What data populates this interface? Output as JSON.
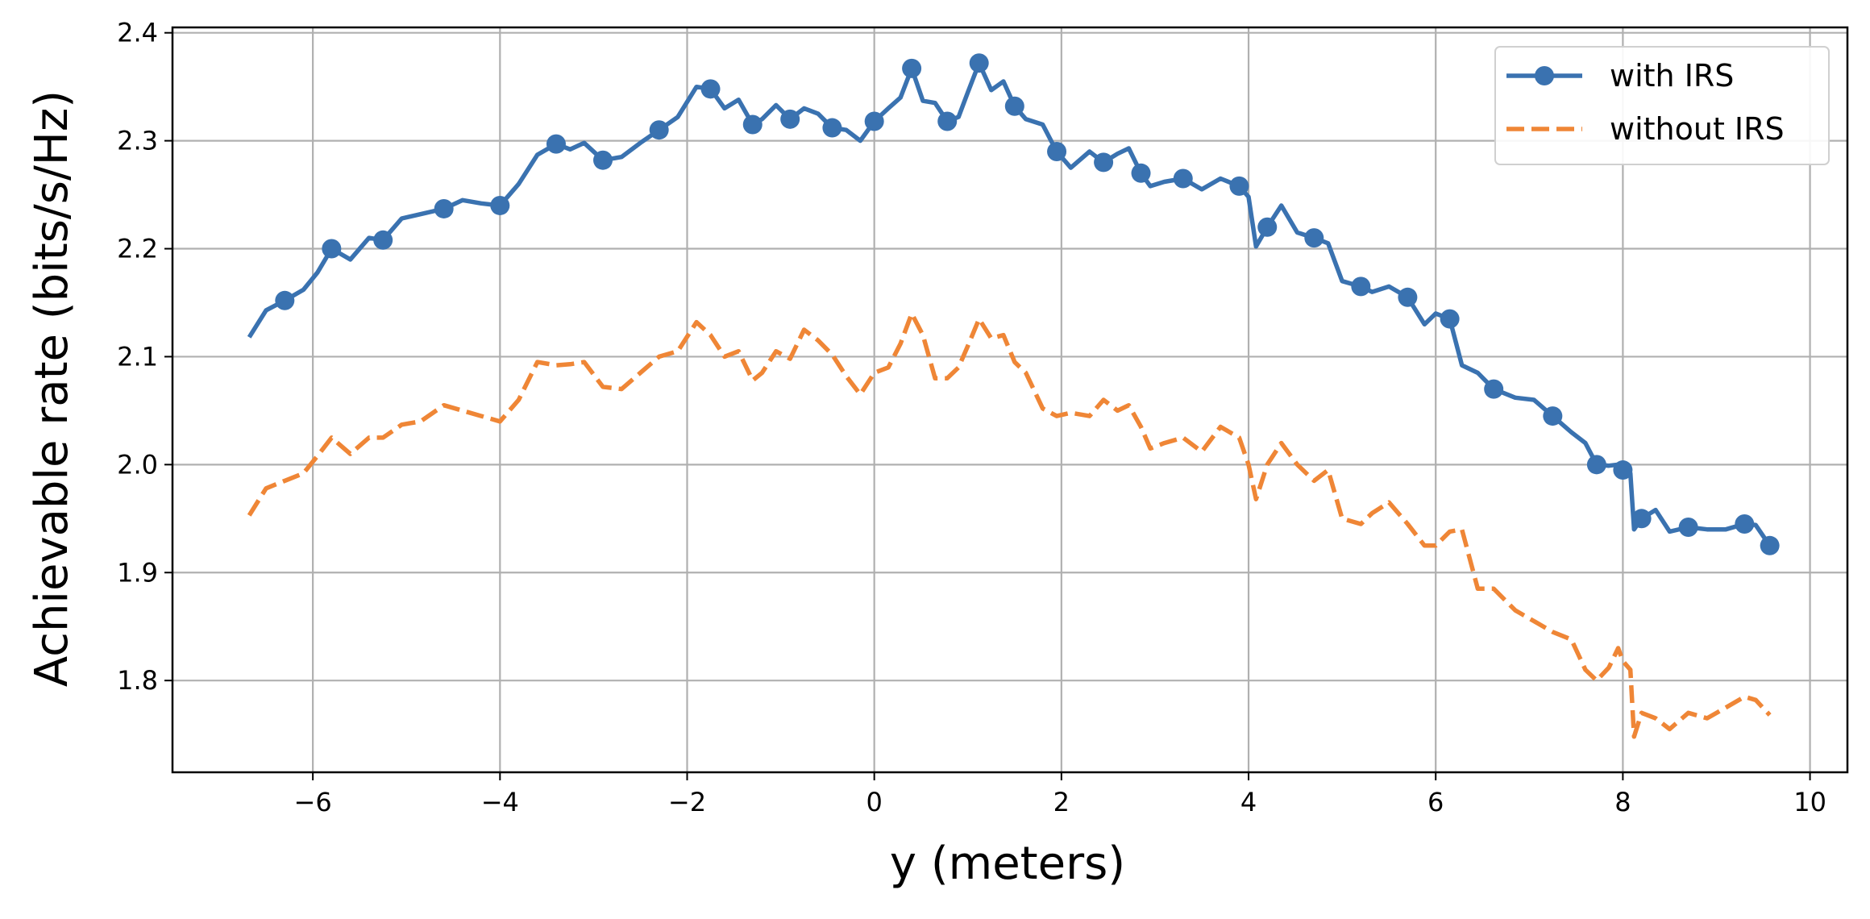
{
  "chart_data": {
    "type": "line",
    "title": "",
    "xlabel": "y (meters)",
    "ylabel": "Achievable rate (bits/s/Hz)",
    "xlim": [
      -7.5,
      10.4
    ],
    "ylim": [
      1.715,
      2.405
    ],
    "xticks": [
      -6,
      -4,
      -2,
      0,
      2,
      4,
      6,
      8,
      10
    ],
    "xtick_labels": [
      "−6",
      "−4",
      "−2",
      "0",
      "2",
      "4",
      "6",
      "8",
      "10"
    ],
    "yticks": [
      1.8,
      1.9,
      2.0,
      2.1,
      2.2,
      2.3,
      2.4
    ],
    "ytick_labels": [
      "1.8",
      "1.9",
      "2.0",
      "2.1",
      "2.2",
      "2.3",
      "2.4"
    ],
    "grid": true,
    "legend_position": "upper right",
    "series": [
      {
        "name": "with IRS",
        "color": "#3a72b0",
        "line_style": "solid",
        "marker": "circle",
        "x": [
          -6.68,
          -6.5,
          -6.3,
          -6.1,
          -5.95,
          -5.8,
          -5.6,
          -5.4,
          -5.25,
          -5.05,
          -4.85,
          -4.6,
          -4.4,
          -4.2,
          -4.0,
          -3.8,
          -3.6,
          -3.4,
          -3.25,
          -3.1,
          -2.9,
          -2.7,
          -2.5,
          -2.3,
          -2.1,
          -1.9,
          -1.75,
          -1.6,
          -1.45,
          -1.3,
          -1.2,
          -1.05,
          -0.9,
          -0.75,
          -0.6,
          -0.45,
          -0.3,
          -0.15,
          0.0,
          0.15,
          0.28,
          0.4,
          0.52,
          0.65,
          0.78,
          0.9,
          1.0,
          1.12,
          1.25,
          1.38,
          1.5,
          1.62,
          1.8,
          1.95,
          2.1,
          2.3,
          2.45,
          2.6,
          2.72,
          2.85,
          2.95,
          3.1,
          3.3,
          3.5,
          3.7,
          3.9,
          4.0,
          4.08,
          4.2,
          4.35,
          4.52,
          4.7,
          4.85,
          5.0,
          5.2,
          5.32,
          5.5,
          5.7,
          5.88,
          6.0,
          6.15,
          6.28,
          6.45,
          6.62,
          6.85,
          7.05,
          7.25,
          7.45,
          7.6,
          7.72,
          7.85,
          7.95,
          8.0,
          8.08,
          8.12,
          8.2,
          8.35,
          8.5,
          8.7,
          8.9,
          9.1,
          9.3,
          9.42,
          9.57
        ],
        "values": [
          2.118,
          2.143,
          2.152,
          2.162,
          2.178,
          2.2,
          2.19,
          2.21,
          2.208,
          2.228,
          2.232,
          2.237,
          2.245,
          2.242,
          2.24,
          2.26,
          2.287,
          2.297,
          2.292,
          2.298,
          2.282,
          2.285,
          2.298,
          2.31,
          2.322,
          2.35,
          2.348,
          2.33,
          2.338,
          2.315,
          2.32,
          2.333,
          2.32,
          2.33,
          2.325,
          2.312,
          2.31,
          2.3,
          2.318,
          2.33,
          2.34,
          2.367,
          2.337,
          2.335,
          2.318,
          2.322,
          2.345,
          2.372,
          2.347,
          2.355,
          2.332,
          2.32,
          2.315,
          2.29,
          2.275,
          2.29,
          2.28,
          2.288,
          2.293,
          2.27,
          2.258,
          2.262,
          2.265,
          2.255,
          2.265,
          2.258,
          2.248,
          2.202,
          2.22,
          2.24,
          2.215,
          2.21,
          2.205,
          2.17,
          2.165,
          2.16,
          2.165,
          2.155,
          2.13,
          2.14,
          2.135,
          2.092,
          2.085,
          2.07,
          2.062,
          2.06,
          2.045,
          2.03,
          2.02,
          2.0,
          1.999,
          2.0,
          1.995,
          1.992,
          1.94,
          1.95,
          1.958,
          1.938,
          1.942,
          1.94,
          1.94,
          1.945,
          1.944,
          1.925
        ]
      },
      {
        "name": "without IRS",
        "color": "#ef8636",
        "line_style": "dashed",
        "marker": "none",
        "x": [
          -6.68,
          -6.5,
          -6.3,
          -6.1,
          -5.95,
          -5.8,
          -5.6,
          -5.4,
          -5.25,
          -5.05,
          -4.85,
          -4.6,
          -4.4,
          -4.2,
          -4.0,
          -3.8,
          -3.6,
          -3.4,
          -3.25,
          -3.1,
          -2.9,
          -2.7,
          -2.5,
          -2.3,
          -2.1,
          -1.9,
          -1.75,
          -1.6,
          -1.45,
          -1.3,
          -1.2,
          -1.05,
          -0.9,
          -0.75,
          -0.6,
          -0.45,
          -0.3,
          -0.15,
          0.0,
          0.15,
          0.28,
          0.4,
          0.52,
          0.65,
          0.78,
          0.9,
          1.0,
          1.12,
          1.25,
          1.38,
          1.5,
          1.62,
          1.8,
          1.95,
          2.1,
          2.3,
          2.45,
          2.6,
          2.72,
          2.85,
          2.95,
          3.1,
          3.3,
          3.5,
          3.7,
          3.9,
          4.0,
          4.08,
          4.2,
          4.35,
          4.52,
          4.7,
          4.85,
          5.0,
          5.2,
          5.32,
          5.5,
          5.7,
          5.88,
          6.0,
          6.15,
          6.28,
          6.45,
          6.62,
          6.85,
          7.05,
          7.25,
          7.45,
          7.6,
          7.72,
          7.85,
          7.95,
          8.0,
          8.08,
          8.12,
          8.2,
          8.35,
          8.5,
          8.7,
          8.9,
          9.1,
          9.3,
          9.42,
          9.57
        ],
        "values": [
          1.953,
          1.978,
          1.985,
          1.992,
          2.008,
          2.025,
          2.01,
          2.025,
          2.025,
          2.037,
          2.04,
          2.055,
          2.05,
          2.045,
          2.04,
          2.06,
          2.095,
          2.092,
          2.093,
          2.095,
          2.072,
          2.07,
          2.085,
          2.1,
          2.105,
          2.132,
          2.12,
          2.1,
          2.105,
          2.078,
          2.085,
          2.105,
          2.098,
          2.125,
          2.115,
          2.102,
          2.082,
          2.065,
          2.085,
          2.09,
          2.112,
          2.14,
          2.12,
          2.08,
          2.08,
          2.09,
          2.11,
          2.135,
          2.117,
          2.12,
          2.095,
          2.085,
          2.052,
          2.045,
          2.048,
          2.045,
          2.06,
          2.05,
          2.055,
          2.035,
          2.015,
          2.02,
          2.025,
          2.012,
          2.035,
          2.025,
          2.0,
          1.968,
          2.0,
          2.02,
          2.0,
          1.985,
          1.995,
          1.95,
          1.945,
          1.955,
          1.965,
          1.945,
          1.925,
          1.925,
          1.938,
          1.94,
          1.885,
          1.885,
          1.865,
          1.855,
          1.845,
          1.838,
          1.81,
          1.8,
          1.812,
          1.83,
          1.818,
          1.81,
          1.748,
          1.77,
          1.765,
          1.755,
          1.77,
          1.765,
          1.775,
          1.785,
          1.782,
          1.768
        ]
      }
    ]
  }
}
